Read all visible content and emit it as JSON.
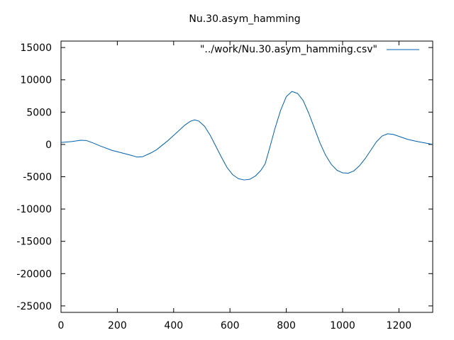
{
  "chart_data": {
    "type": "line",
    "title": "Nu.30.asym_hamming",
    "xlabel": "",
    "ylabel": "",
    "xlim": [
      0,
      1320
    ],
    "ylim": [
      -26000,
      16000
    ],
    "x_ticks": [
      0,
      200,
      400,
      600,
      800,
      1000,
      1200
    ],
    "y_ticks": [
      15000,
      10000,
      5000,
      0,
      -5000,
      -10000,
      -15000,
      -20000,
      -25000
    ],
    "grid": false,
    "legend_position": "top-right",
    "series": [
      {
        "name": "\"../work/Nu.30.asym_hamming.csv\"",
        "color": "#0060ad",
        "points": [
          [
            0,
            300
          ],
          [
            40,
            450
          ],
          [
            70,
            650
          ],
          [
            90,
            600
          ],
          [
            110,
            300
          ],
          [
            140,
            -250
          ],
          [
            180,
            -900
          ],
          [
            220,
            -1350
          ],
          [
            250,
            -1700
          ],
          [
            270,
            -1950
          ],
          [
            290,
            -1900
          ],
          [
            320,
            -1300
          ],
          [
            340,
            -800
          ],
          [
            360,
            -100
          ],
          [
            380,
            600
          ],
          [
            400,
            1400
          ],
          [
            420,
            2200
          ],
          [
            440,
            3000
          ],
          [
            460,
            3600
          ],
          [
            475,
            3800
          ],
          [
            490,
            3600
          ],
          [
            510,
            2800
          ],
          [
            530,
            1400
          ],
          [
            550,
            -300
          ],
          [
            570,
            -2000
          ],
          [
            590,
            -3600
          ],
          [
            610,
            -4700
          ],
          [
            630,
            -5300
          ],
          [
            650,
            -5500
          ],
          [
            670,
            -5400
          ],
          [
            690,
            -4900
          ],
          [
            710,
            -4000
          ],
          [
            725,
            -3000
          ],
          [
            740,
            -700
          ],
          [
            760,
            2500
          ],
          [
            780,
            5300
          ],
          [
            800,
            7400
          ],
          [
            820,
            8200
          ],
          [
            840,
            7900
          ],
          [
            860,
            6800
          ],
          [
            880,
            4800
          ],
          [
            900,
            2500
          ],
          [
            920,
            200
          ],
          [
            940,
            -1700
          ],
          [
            960,
            -3100
          ],
          [
            980,
            -4000
          ],
          [
            1000,
            -4400
          ],
          [
            1020,
            -4450
          ],
          [
            1040,
            -4100
          ],
          [
            1060,
            -3300
          ],
          [
            1080,
            -2200
          ],
          [
            1100,
            -900
          ],
          [
            1120,
            400
          ],
          [
            1140,
            1300
          ],
          [
            1160,
            1650
          ],
          [
            1180,
            1550
          ],
          [
            1200,
            1250
          ],
          [
            1230,
            800
          ],
          [
            1260,
            500
          ],
          [
            1290,
            250
          ],
          [
            1320,
            0
          ]
        ]
      }
    ]
  }
}
